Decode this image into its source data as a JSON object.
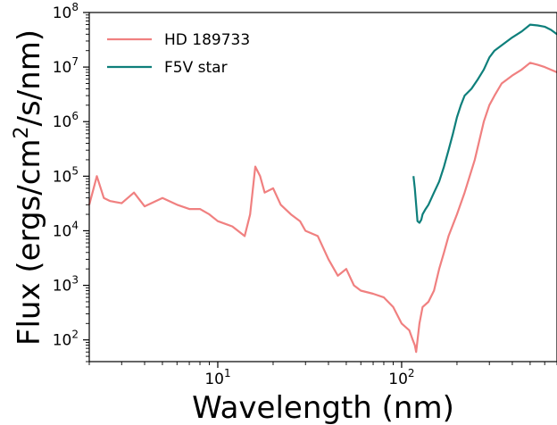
{
  "chart_data": {
    "type": "line",
    "xlabel": "Wavelength (nm)",
    "ylabel_base": "Flux (ergs/cm",
    "ylabel_sup": "2",
    "ylabel_tail": "/s/nm)",
    "xscale": "log",
    "yscale": "log",
    "xlim": [
      2,
      700
    ],
    "ylim": [
      40,
      100000000
    ],
    "legend_position": "top-left",
    "x_ticks": [
      {
        "value": 10,
        "base": "10",
        "exp": "1"
      },
      {
        "value": 100,
        "base": "10",
        "exp": "2"
      }
    ],
    "y_ticks": [
      {
        "value": 100,
        "base": "10",
        "exp": "2"
      },
      {
        "value": 1000,
        "base": "10",
        "exp": "3"
      },
      {
        "value": 10000,
        "base": "10",
        "exp": "4"
      },
      {
        "value": 100000,
        "base": "10",
        "exp": "5"
      },
      {
        "value": 1000000,
        "base": "10",
        "exp": "6"
      },
      {
        "value": 10000000,
        "base": "10",
        "exp": "7"
      },
      {
        "value": 100000000,
        "base": "10",
        "exp": "8"
      }
    ],
    "series": [
      {
        "name": "HD 189733",
        "color": "#f08080",
        "x": [
          2,
          2.2,
          2.4,
          2.6,
          3,
          3.5,
          4,
          5,
          6,
          7,
          8,
          9,
          10,
          12,
          14,
          15,
          16,
          17,
          18,
          20,
          22,
          25,
          28,
          30,
          35,
          40,
          45,
          50,
          55,
          60,
          70,
          80,
          90,
          100,
          110,
          115,
          118,
          120,
          125,
          130,
          140,
          150,
          160,
          170,
          180,
          200,
          220,
          250,
          280,
          300,
          320,
          350,
          400,
          450,
          500,
          550,
          600,
          700
        ],
        "y": [
          30000,
          100000,
          40000,
          35000,
          32000,
          50000,
          28000,
          40000,
          30000,
          25000,
          25000,
          20000,
          15000,
          12000,
          8000,
          20000,
          150000,
          100000,
          50000,
          60000,
          30000,
          20000,
          15000,
          10000,
          8000,
          3000,
          1500,
          2000,
          1000,
          800,
          700,
          600,
          400,
          200,
          150,
          100,
          80,
          60,
          200,
          400,
          500,
          800,
          2000,
          4000,
          8000,
          20000,
          50000,
          200000,
          1000000,
          2000000,
          3000000,
          5000000,
          7000000,
          9000000,
          12000000,
          11000000,
          10000000,
          8000000
        ]
      },
      {
        "name": "F5V star",
        "color": "#0e7f7b",
        "x": [
          116,
          118,
          120,
          122,
          125,
          128,
          130,
          135,
          140,
          150,
          160,
          170,
          180,
          190,
          200,
          210,
          220,
          240,
          260,
          280,
          300,
          320,
          350,
          400,
          450,
          500,
          550,
          600,
          650,
          700
        ],
        "y": [
          100000,
          60000,
          30000,
          15000,
          14000,
          16000,
          20000,
          25000,
          30000,
          50000,
          80000,
          150000,
          300000,
          600000,
          1200000,
          2000000,
          3000000,
          4000000,
          6000000,
          9000000,
          15000000,
          20000000,
          25000000,
          35000000,
          45000000,
          60000000,
          58000000,
          55000000,
          48000000,
          40000000
        ]
      }
    ]
  }
}
